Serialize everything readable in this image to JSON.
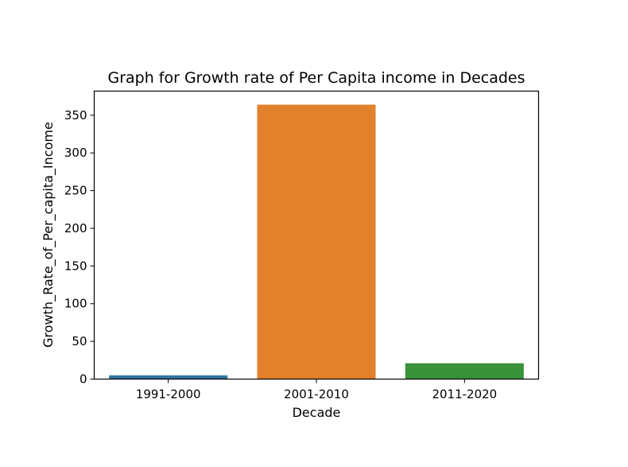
{
  "chart_data": {
    "type": "bar",
    "title": "Graph for Growth rate of Per Capita income in Decades",
    "xlabel": "Decade",
    "ylabel": "Growth_Rate_of_Per_capita_Income",
    "categories": [
      "1991-2000",
      "2001-2010",
      "2011-2020"
    ],
    "values": [
      5,
      364,
      21
    ],
    "colors": [
      "#3274a1",
      "#e1812c",
      "#3a923a"
    ],
    "ylim": [
      0,
      382
    ],
    "yticks": [
      0,
      50,
      100,
      150,
      200,
      250,
      300,
      350
    ],
    "grid": false,
    "legend": false
  }
}
